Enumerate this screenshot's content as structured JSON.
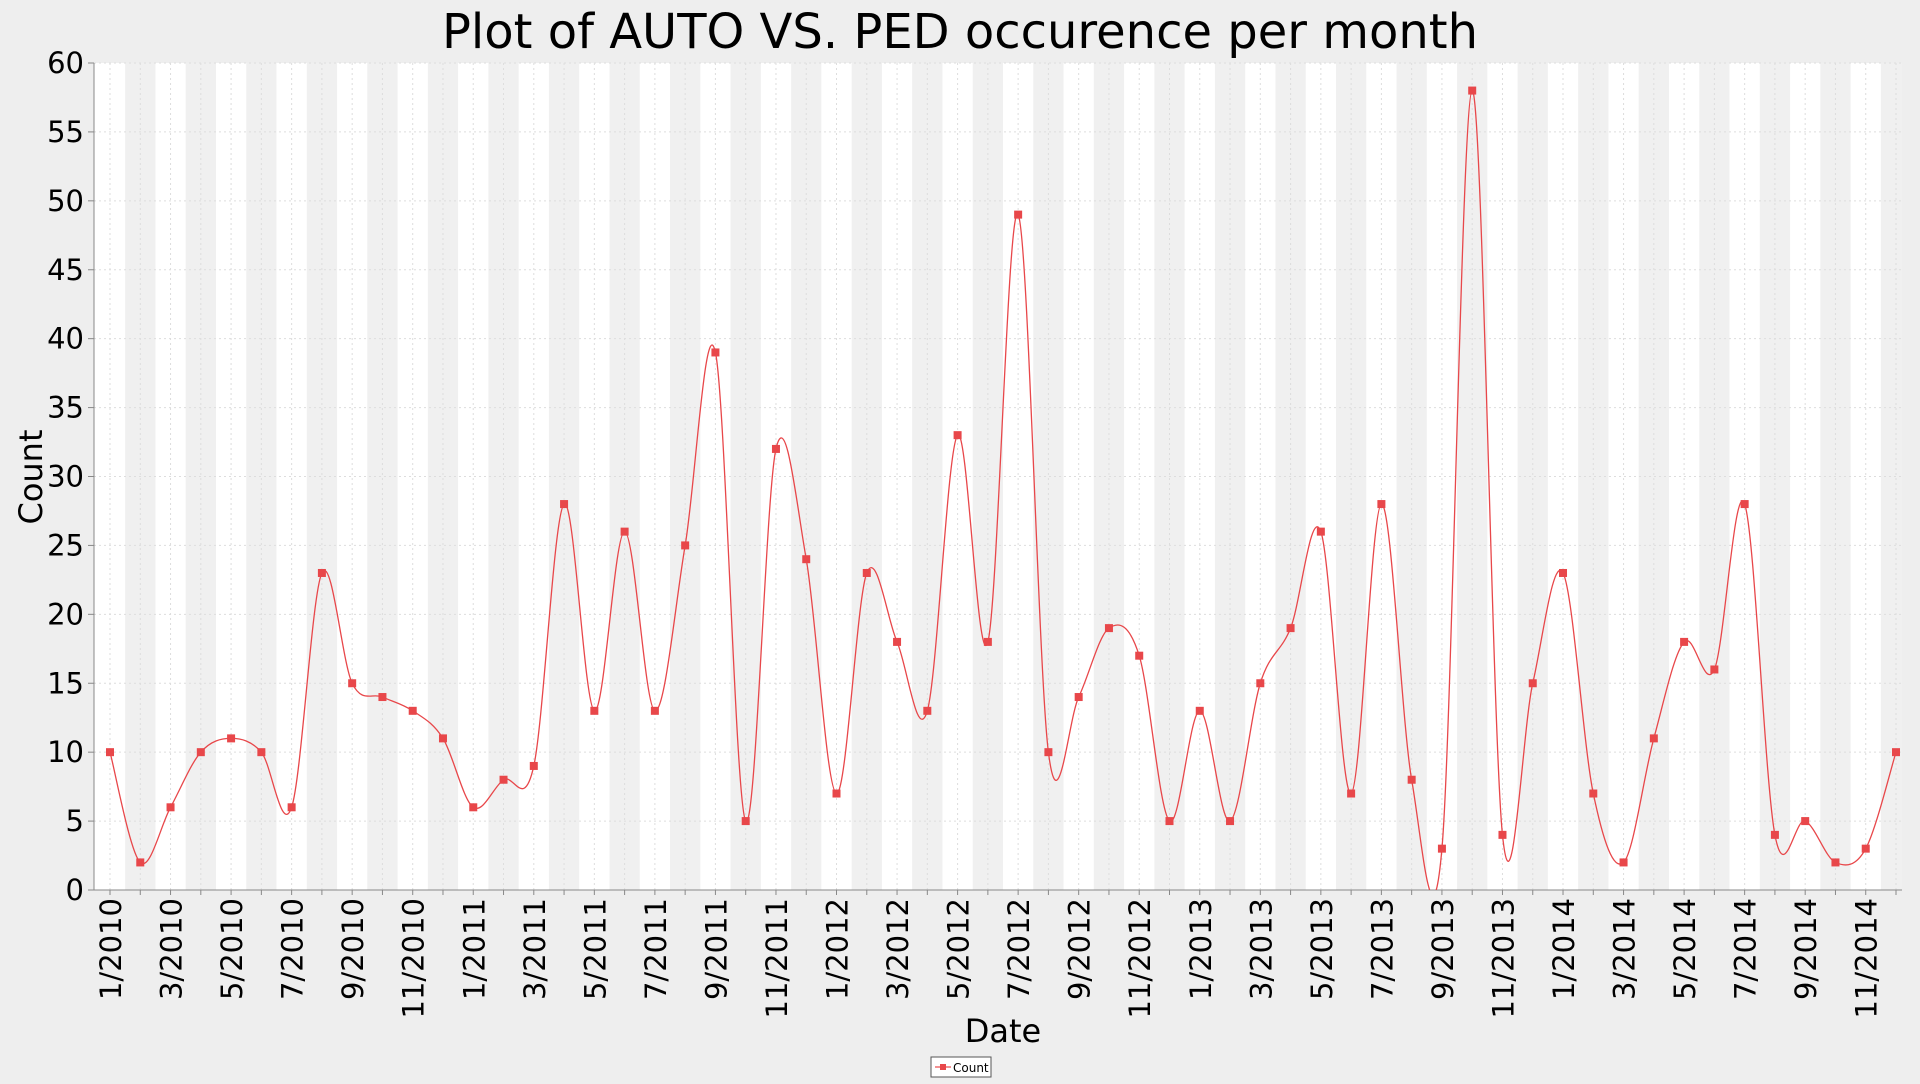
{
  "chart_data": {
    "type": "line",
    "title": "Plot of AUTO VS. PED occurence per month",
    "xlabel": "Date",
    "ylabel": "Count",
    "ylim": [
      0,
      60
    ],
    "y_ticks": [
      "0",
      "5",
      "10",
      "15",
      "20",
      "25",
      "30",
      "35",
      "40",
      "45",
      "50",
      "55",
      "60"
    ],
    "x_tick_labels": [
      "1/2010",
      "3/2010",
      "5/2010",
      "7/2010",
      "9/2010",
      "11/2010",
      "1/2011",
      "3/2011",
      "5/2011",
      "7/2011",
      "9/2011",
      "11/2011",
      "1/2012",
      "3/2012",
      "5/2012",
      "7/2012",
      "9/2012",
      "11/2012",
      "1/2013",
      "3/2013",
      "5/2013",
      "7/2013",
      "9/2013",
      "11/2013",
      "1/2014",
      "3/2014",
      "5/2014",
      "7/2014",
      "9/2014",
      "11/2014"
    ],
    "grid": true,
    "legend_position": "bottom-center",
    "series": [
      {
        "name": "Count",
        "color": "#e8474a",
        "x": [
          "1/2010",
          "2/2010",
          "3/2010",
          "4/2010",
          "5/2010",
          "6/2010",
          "7/2010",
          "8/2010",
          "9/2010",
          "10/2010",
          "11/2010",
          "12/2010",
          "1/2011",
          "2/2011",
          "3/2011",
          "4/2011",
          "5/2011",
          "6/2011",
          "7/2011",
          "8/2011",
          "9/2011",
          "10/2011",
          "11/2011",
          "12/2011",
          "1/2012",
          "2/2012",
          "3/2012",
          "4/2012",
          "5/2012",
          "6/2012",
          "7/2012",
          "8/2012",
          "9/2012",
          "10/2012",
          "11/2012",
          "12/2012",
          "1/2013",
          "2/2013",
          "3/2013",
          "4/2013",
          "5/2013",
          "6/2013",
          "7/2013",
          "8/2013",
          "9/2013",
          "10/2013",
          "11/2013",
          "12/2013",
          "1/2014",
          "2/2014",
          "3/2014",
          "4/2014",
          "5/2014",
          "6/2014",
          "7/2014",
          "8/2014",
          "9/2014",
          "10/2014",
          "11/2014",
          "12/2014"
        ],
        "values": [
          10,
          2,
          6,
          10,
          11,
          10,
          6,
          23,
          15,
          14,
          13,
          11,
          6,
          8,
          9,
          28,
          13,
          26,
          13,
          25,
          39,
          5,
          32,
          24,
          7,
          23,
          18,
          13,
          33,
          18,
          49,
          10,
          14,
          19,
          17,
          5,
          13,
          5,
          15,
          19,
          26,
          7,
          28,
          8,
          3,
          58,
          4,
          15,
          23,
          7,
          2,
          11,
          18,
          16,
          28,
          4,
          5,
          2,
          3,
          10
        ]
      }
    ]
  }
}
